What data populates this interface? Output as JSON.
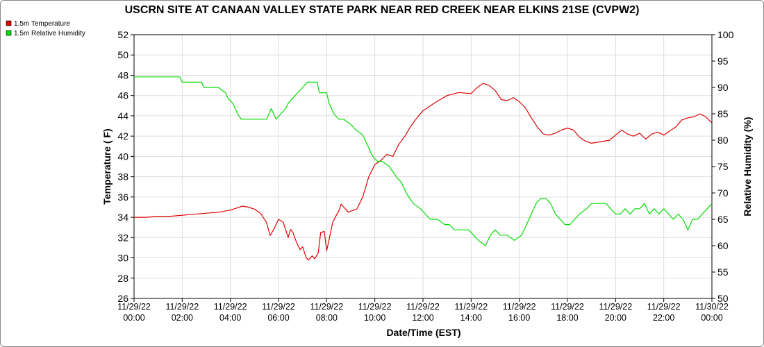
{
  "chart_data": {
    "type": "line",
    "title": "USCRN SITE AT CANAAN VALLEY STATE PARK NEAR RED CREEK NEAR ELKINS 21SE (CVPW2)",
    "xlabel": "Date/Time (EST)",
    "ylabel_left": "Temperature ( F)",
    "ylabel_right": "Relative Humidity (%)",
    "ylim_left": [
      26,
      52
    ],
    "yticks_left": [
      26,
      28,
      30,
      32,
      34,
      36,
      38,
      40,
      42,
      44,
      46,
      48,
      50,
      52
    ],
    "ylim_right": [
      50,
      100
    ],
    "yticks_right": [
      50,
      55,
      60,
      65,
      70,
      75,
      80,
      85,
      90,
      95,
      100
    ],
    "xlim_hours": [
      0,
      24
    ],
    "xticks": [
      {
        "hour": 0,
        "date": "11/29/22",
        "time": "00:00"
      },
      {
        "hour": 2,
        "date": "11/29/22",
        "time": "02:00"
      },
      {
        "hour": 4,
        "date": "11/29/22",
        "time": "04:00"
      },
      {
        "hour": 6,
        "date": "11/29/22",
        "time": "06:00"
      },
      {
        "hour": 8,
        "date": "11/29/22",
        "time": "08:00"
      },
      {
        "hour": 10,
        "date": "11/29/22",
        "time": "10:00"
      },
      {
        "hour": 12,
        "date": "11/29/22",
        "time": "12:00"
      },
      {
        "hour": 14,
        "date": "11/29/22",
        "time": "14:00"
      },
      {
        "hour": 16,
        "date": "11/29/22",
        "time": "16:00"
      },
      {
        "hour": 18,
        "date": "11/29/22",
        "time": "18:00"
      },
      {
        "hour": 20,
        "date": "11/29/22",
        "time": "20:00"
      },
      {
        "hour": 22,
        "date": "11/29/22",
        "time": "22:00"
      },
      {
        "hour": 24,
        "date": "11/30/22",
        "time": "00:00"
      }
    ],
    "grid": true,
    "legend_position": "top-left",
    "series": [
      {
        "name": "1.5m Temperature",
        "axis": "left",
        "color": "#e00000",
        "x_hours": [
          0,
          0.5,
          1,
          1.5,
          2,
          2.5,
          3,
          3.5,
          4,
          4.25,
          4.5,
          4.75,
          5,
          5.25,
          5.5,
          5.65,
          5.8,
          6,
          6.2,
          6.4,
          6.5,
          6.6,
          6.75,
          6.9,
          7,
          7.15,
          7.25,
          7.4,
          7.5,
          7.65,
          7.75,
          7.9,
          8,
          8.1,
          8.25,
          8.4,
          8.5,
          8.6,
          8.75,
          8.9,
          9,
          9.25,
          9.5,
          9.75,
          10,
          10.25,
          10.5,
          10.75,
          11,
          11.25,
          11.5,
          11.75,
          12,
          12.5,
          13,
          13.5,
          14,
          14.25,
          14.5,
          14.75,
          15,
          15.25,
          15.5,
          15.75,
          16,
          16.25,
          16.5,
          16.75,
          17,
          17.25,
          17.5,
          17.75,
          18,
          18.25,
          18.5,
          18.75,
          19,
          19.25,
          19.5,
          19.75,
          20,
          20.25,
          20.5,
          20.75,
          21,
          21.25,
          21.5,
          21.75,
          22,
          22.25,
          22.5,
          22.75,
          23,
          23.25,
          23.5,
          23.75,
          24
        ],
        "values": [
          34.0,
          34.0,
          34.1,
          34.1,
          34.2,
          34.3,
          34.4,
          34.5,
          34.7,
          34.9,
          35.1,
          35.0,
          34.8,
          34.4,
          33.5,
          32.2,
          32.8,
          33.8,
          33.5,
          32.0,
          32.8,
          32.5,
          31.5,
          30.8,
          31.1,
          30.0,
          29.8,
          30.2,
          29.9,
          30.5,
          32.5,
          32.6,
          30.7,
          31.8,
          33.5,
          34.2,
          34.6,
          35.3,
          34.9,
          34.5,
          34.6,
          34.8,
          36.0,
          38.0,
          39.2,
          39.6,
          40.2,
          40.0,
          41.2,
          42.0,
          43.0,
          43.8,
          44.5,
          45.3,
          46.0,
          46.3,
          46.2,
          46.8,
          47.2,
          47.0,
          46.5,
          45.6,
          45.5,
          45.8,
          45.4,
          44.8,
          43.8,
          42.9,
          42.2,
          42.1,
          42.3,
          42.6,
          42.8,
          42.6,
          41.9,
          41.5,
          41.3,
          41.4,
          41.5,
          41.6,
          42.1,
          42.6,
          42.2,
          42.0,
          42.3,
          41.7,
          42.2,
          42.4,
          42.1,
          42.5,
          42.9,
          43.6,
          43.8,
          43.9,
          44.2,
          43.9,
          43.3
        ]
      },
      {
        "name": "1.5m Relative Humidity",
        "axis": "right",
        "color": "#00dd00",
        "x_hours": [
          0,
          1.9,
          2,
          2.8,
          2.9,
          3.5,
          3.8,
          3.9,
          4.1,
          4.3,
          4.45,
          4.6,
          5.1,
          5.5,
          5.7,
          5.9,
          6.1,
          6.3,
          6.4,
          6.6,
          6.8,
          7.0,
          7.2,
          7.4,
          7.6,
          7.7,
          8.0,
          8.1,
          8.3,
          8.5,
          8.7,
          9.0,
          9.2,
          9.5,
          9.7,
          9.9,
          10.1,
          10.3,
          10.6,
          10.9,
          11.1,
          11.3,
          11.6,
          11.9,
          12.1,
          12.3,
          12.6,
          12.9,
          13.1,
          13.3,
          13.6,
          13.9,
          14.1,
          14.3,
          14.6,
          14.8,
          15.0,
          15.2,
          15.5,
          15.8,
          16.1,
          16.3,
          16.5,
          16.7,
          16.9,
          17.1,
          17.3,
          17.5,
          17.7,
          17.9,
          18.1,
          18.3,
          18.5,
          18.8,
          19.0,
          19.2,
          19.4,
          19.6,
          19.8,
          20.0,
          20.2,
          20.4,
          20.6,
          20.8,
          21.0,
          21.2,
          21.4,
          21.6,
          21.8,
          22.0,
          22.2,
          22.4,
          22.6,
          22.8,
          23.0,
          23.2,
          23.4,
          23.6,
          23.8,
          24.0
        ],
        "values": [
          92.0,
          92.0,
          91.0,
          91.0,
          90.0,
          90.0,
          89.0,
          88.0,
          87.0,
          85.0,
          84.0,
          84.0,
          84.0,
          84.0,
          86.0,
          84.0,
          85.0,
          86.0,
          87.0,
          88.0,
          89.0,
          90.0,
          91.0,
          91.0,
          91.0,
          89.0,
          89.0,
          87.0,
          85.0,
          84.0,
          84.0,
          83.0,
          82.0,
          81.0,
          79.0,
          77.0,
          76.0,
          76.0,
          75.0,
          73.0,
          72.0,
          70.0,
          68.0,
          67.0,
          66.0,
          65.0,
          65.0,
          64.0,
          64.0,
          63.0,
          63.0,
          63.0,
          62.0,
          61.0,
          60.0,
          62.0,
          63.0,
          62.0,
          62.0,
          61.0,
          62.0,
          64.0,
          66.0,
          68.0,
          69.0,
          69.0,
          68.0,
          66.0,
          65.0,
          64.0,
          64.0,
          65.0,
          66.0,
          67.0,
          68.0,
          68.0,
          68.0,
          68.0,
          67.0,
          66.0,
          66.0,
          67.0,
          66.0,
          67.0,
          67.0,
          68.0,
          66.0,
          67.0,
          66.0,
          67.0,
          66.0,
          65.0,
          66.0,
          65.0,
          63.0,
          65.0,
          65.0,
          66.0,
          67.0,
          68.0
        ]
      }
    ]
  }
}
